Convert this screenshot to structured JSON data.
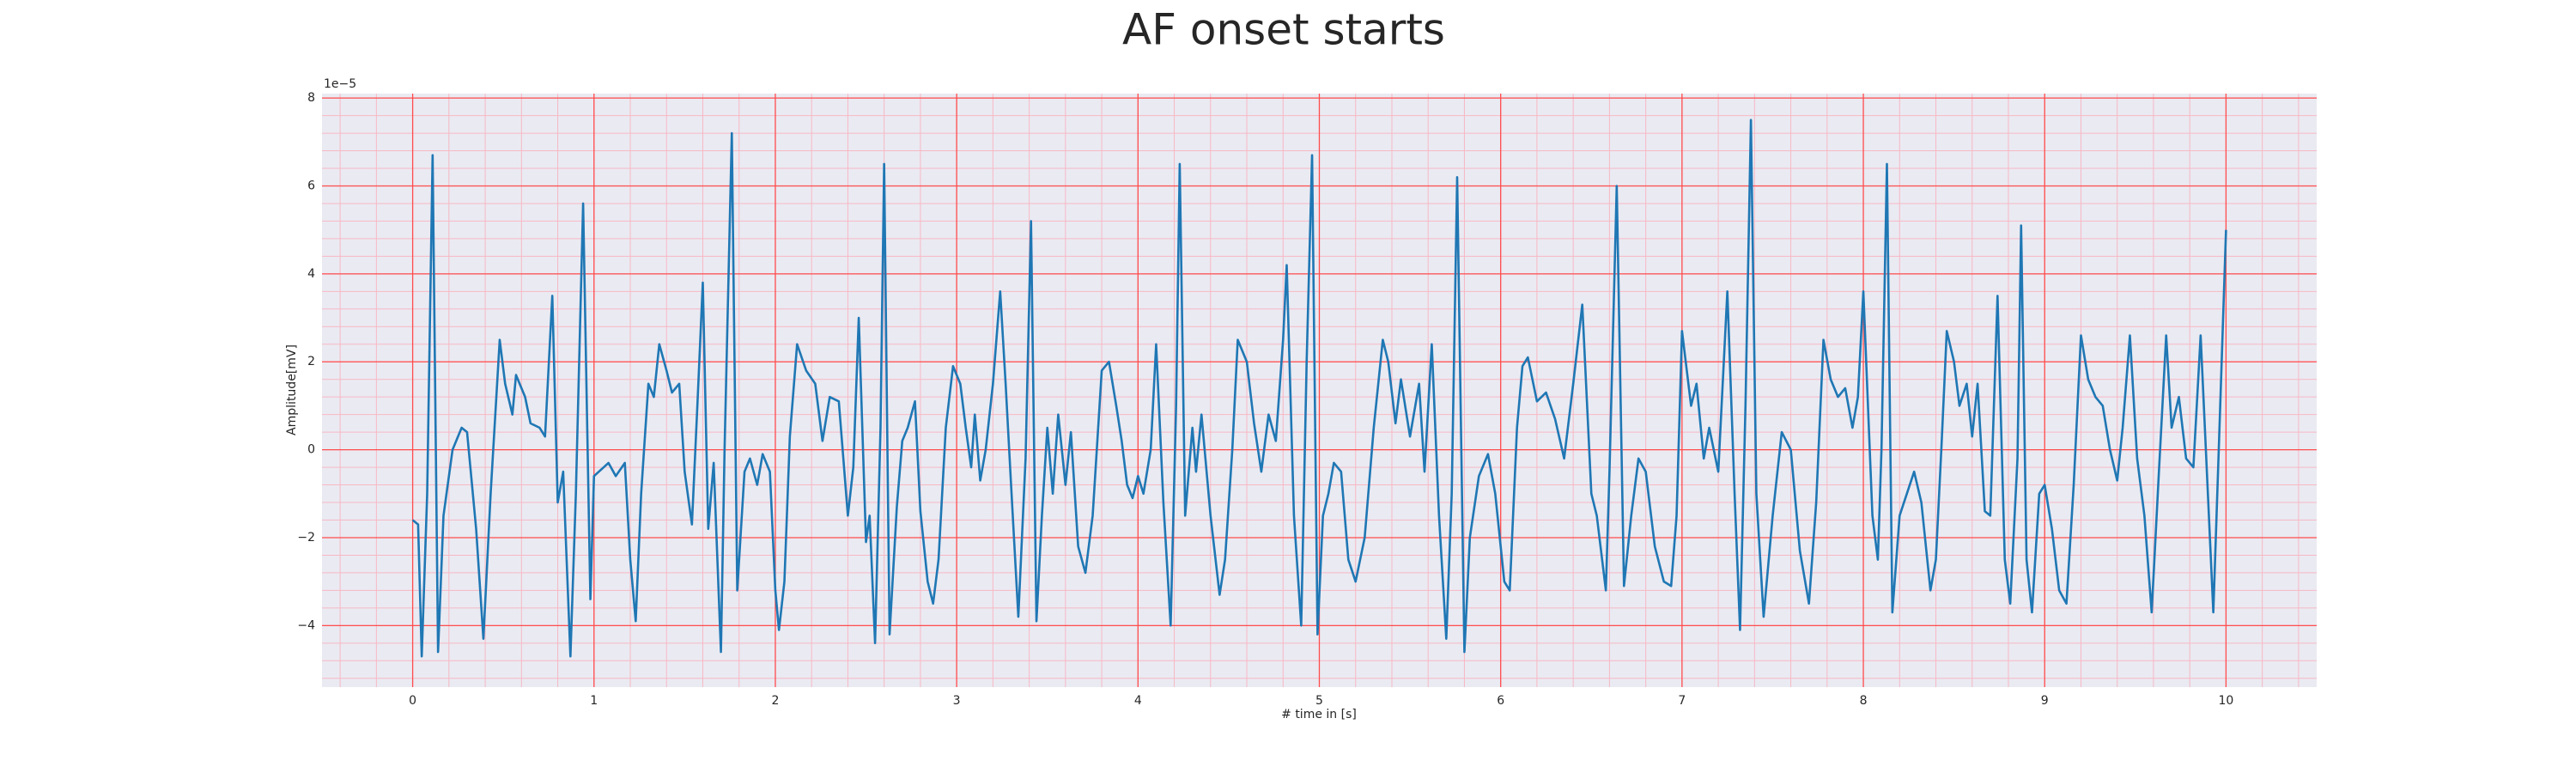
{
  "chart_data": {
    "type": "line",
    "title": "AF onset starts",
    "xlabel": "# time in [s]",
    "ylabel": "Amplitude[mV]",
    "y_offset_label": "1e−5",
    "xlim": [
      -0.5,
      10.5
    ],
    "ylim": [
      -5.4,
      8.1
    ],
    "xticks": [
      0,
      1,
      2,
      3,
      4,
      5,
      6,
      7,
      8,
      9,
      10
    ],
    "yticks": [
      {
        "value": -4,
        "label": "−4"
      },
      {
        "value": -2,
        "label": "−2"
      },
      0,
      2,
      4,
      6,
      8
    ],
    "grid": true,
    "minor_grid": true,
    "grid_color": "#ff4d4d",
    "minor_grid_color": "#f7b8c4",
    "background": "#eaeaf2",
    "x": [
      0,
      0.03,
      0.05,
      0.08,
      0.11,
      0.14,
      0.17,
      0.22,
      0.27,
      0.3,
      0.35,
      0.39,
      0.43,
      0.48,
      0.51,
      0.55,
      0.57,
      0.62,
      0.65,
      0.7,
      0.73,
      0.77,
      0.8,
      0.83,
      0.87,
      0.9,
      0.94,
      0.98,
      1.0,
      1.08,
      1.12,
      1.17,
      1.2,
      1.23,
      1.26,
      1.3,
      1.33,
      1.36,
      1.4,
      1.43,
      1.47,
      1.5,
      1.54,
      1.57,
      1.6,
      1.63,
      1.66,
      1.7,
      1.72,
      1.76,
      1.79,
      1.83,
      1.86,
      1.9,
      1.93,
      1.97,
      2.0,
      2.02,
      2.05,
      2.08,
      2.12,
      2.17,
      2.22,
      2.26,
      2.3,
      2.35,
      2.4,
      2.43,
      2.46,
      2.5,
      2.52,
      2.55,
      2.58,
      2.6,
      2.63,
      2.67,
      2.7,
      2.73,
      2.77,
      2.8,
      2.84,
      2.87,
      2.9,
      2.94,
      2.98,
      3.02,
      3.05,
      3.08,
      3.1,
      3.13,
      3.16,
      3.2,
      3.24,
      3.27,
      3.3,
      3.34,
      3.38,
      3.41,
      3.44,
      3.47,
      3.5,
      3.53,
      3.56,
      3.6,
      3.63,
      3.67,
      3.71,
      3.75,
      3.8,
      3.84,
      3.88,
      3.91,
      3.94,
      3.97,
      4.0,
      4.03,
      4.07,
      4.1,
      4.14,
      4.18,
      4.21,
      4.23,
      4.26,
      4.3,
      4.32,
      4.35,
      4.4,
      4.45,
      4.48,
      4.52,
      4.55,
      4.6,
      4.64,
      4.68,
      4.72,
      4.76,
      4.8,
      4.82,
      4.86,
      4.9,
      4.93,
      4.96,
      4.99,
      5.02,
      5.05,
      5.08,
      5.12,
      5.16,
      5.2,
      5.25,
      5.3,
      5.35,
      5.38,
      5.42,
      5.45,
      5.5,
      5.55,
      5.58,
      5.62,
      5.66,
      5.7,
      5.73,
      5.76,
      5.8,
      5.83,
      5.88,
      5.93,
      5.97,
      6.02,
      6.05,
      6.09,
      6.12,
      6.15,
      6.2,
      6.25,
      6.3,
      6.35,
      6.4,
      6.45,
      6.5,
      6.53,
      6.58,
      6.6,
      6.64,
      6.68,
      6.72,
      6.76,
      6.8,
      6.85,
      6.9,
      6.94,
      6.97,
      7.0,
      7.05,
      7.08,
      7.12,
      7.15,
      7.2,
      7.25,
      7.29,
      7.32,
      7.35,
      7.38,
      7.41,
      7.45,
      7.5,
      7.55,
      7.6,
      7.65,
      7.7,
      7.74,
      7.78,
      7.82,
      7.86,
      7.9,
      7.94,
      7.97,
      8.0,
      8.05,
      8.08,
      8.1,
      8.13,
      8.16,
      8.2,
      8.24,
      8.28,
      8.32,
      8.37,
      8.4,
      8.43,
      8.46,
      8.5,
      8.53,
      8.57,
      8.6,
      8.63,
      8.67,
      8.7,
      8.74,
      8.78,
      8.81,
      8.85,
      8.87,
      8.9,
      8.93,
      8.97,
      9.0,
      9.04,
      9.08,
      9.12,
      9.16,
      9.2,
      9.24,
      9.28,
      9.32,
      9.36,
      9.4,
      9.43,
      9.47,
      9.51,
      9.55,
      9.59,
      9.63,
      9.67,
      9.7,
      9.74,
      9.78,
      9.82,
      9.86,
      9.9,
      9.93,
      9.96,
      10.0
    ],
    "series": [
      {
        "color": "#1f77b4",
        "values": [
          -1.6,
          -1.7,
          -4.7,
          -1,
          6.7,
          -4.6,
          -1.5,
          0,
          0.5,
          0.4,
          -1.8,
          -4.3,
          -1,
          2.5,
          1.5,
          0.8,
          1.7,
          1.2,
          0.6,
          0.5,
          0.3,
          3.5,
          -1.2,
          -0.5,
          -4.7,
          -1,
          5.6,
          -3.4,
          -0.6,
          -0.3,
          -0.6,
          -0.3,
          -2.5,
          -3.9,
          -1,
          1.5,
          1.2,
          2.4,
          1.8,
          1.3,
          1.5,
          -0.5,
          -1.7,
          1.0,
          3.8,
          -1.8,
          -0.3,
          -4.6,
          0,
          7.2,
          -3.2,
          -0.5,
          -0.2,
          -0.8,
          -0.1,
          -0.5,
          -3.2,
          -4.1,
          -3,
          0.3,
          2.4,
          1.8,
          1.5,
          0.2,
          1.2,
          1.1,
          -1.5,
          -0.4,
          3.0,
          -2.1,
          -1.5,
          -4.4,
          0.5,
          6.5,
          -4.2,
          -1.3,
          0.2,
          0.5,
          1.1,
          -1.4,
          -3,
          -3.5,
          -2.5,
          0.5,
          1.9,
          1.5,
          0.5,
          -0.4,
          0.8,
          -0.7,
          0,
          1.5,
          3.6,
          1.5,
          -0.8,
          -3.8,
          -0.2,
          5.2,
          -3.9,
          -1.5,
          0.5,
          -1,
          0.8,
          -0.8,
          0.4,
          -2.2,
          -2.8,
          -1.5,
          1.8,
          2.0,
          1.0,
          0.2,
          -0.8,
          -1.1,
          -0.6,
          -1,
          0,
          2.4,
          -1.2,
          -4,
          1,
          6.5,
          -1.5,
          0.5,
          -0.5,
          0.8,
          -1.5,
          -3.3,
          -2.5,
          0,
          2.5,
          2.0,
          0.6,
          -0.5,
          0.8,
          0.2,
          2.5,
          4.2,
          -1.5,
          -4.0,
          2,
          6.7,
          -4.2,
          -1.5,
          -1,
          -0.3,
          -0.5,
          -2.5,
          -3,
          -2,
          0.5,
          2.5,
          2,
          0.6,
          1.6,
          0.3,
          1.5,
          -0.5,
          2.4,
          -1.5,
          -4.3,
          -1,
          6.2,
          -4.6,
          -2,
          -0.6,
          -0.1,
          -1,
          -3,
          -3.2,
          0.5,
          1.9,
          2.1,
          1.1,
          1.3,
          0.7,
          -0.2,
          1.5,
          3.3,
          -1,
          -1.5,
          -3.2,
          -0.5,
          6.0,
          -3.1,
          -1.5,
          -0.2,
          -0.5,
          -2.2,
          -3,
          -3.1,
          -1.5,
          2.7,
          1,
          1.5,
          -0.2,
          0.5,
          -0.5,
          3.6,
          -1,
          -4.1,
          1,
          7.5,
          -1,
          -3.8,
          -1.5,
          0.4,
          0,
          -2.3,
          -3.5,
          -1.2,
          2.5,
          1.6,
          1.2,
          1.4,
          0.5,
          1.2,
          3.6,
          -1.5,
          -2.5,
          0,
          6.5,
          -3.7,
          -1.5,
          -1,
          -0.5,
          -1.2,
          -3.2,
          -2.5,
          0,
          2.7,
          2,
          1,
          1.5,
          0.3,
          1.5,
          -1.4,
          -1.5,
          3.5,
          -2.5,
          -3.5,
          -0.2,
          5.1,
          -2.5,
          -3.7,
          -1,
          -0.8,
          -1.8,
          -3.2,
          -3.5,
          -0.8,
          2.6,
          1.6,
          1.2,
          1,
          0,
          -0.7,
          0.5,
          2.6,
          -0.2,
          -1.5,
          -3.7,
          -0.5,
          2.6,
          0.5,
          1.2,
          -0.2,
          -0.4,
          2.6,
          -1,
          -3.7,
          0,
          5.0
        ]
      }
    ]
  }
}
